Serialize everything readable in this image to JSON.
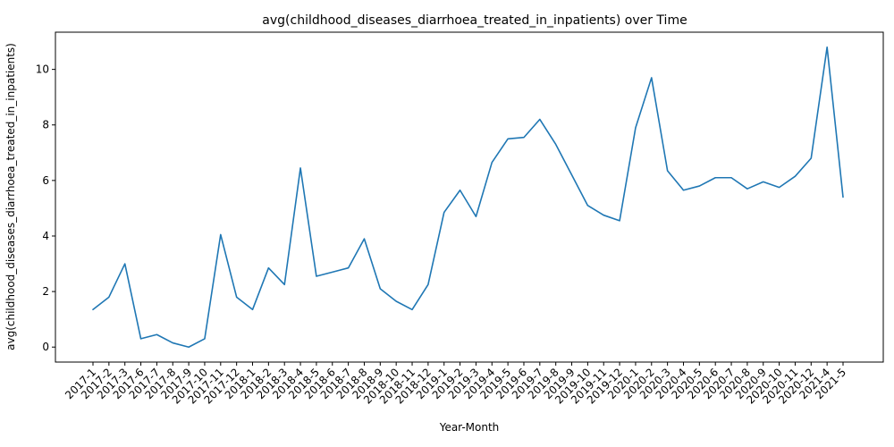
{
  "chart_data": {
    "type": "line",
    "title": "avg(childhood_diseases_diarrhoea_treated_in_inpatients) over Time",
    "xlabel": "Year-Month",
    "ylabel": "avg(childhood_diseases_diarrhoea_treated_in_inpatients)",
    "ylim": [
      -0.54,
      11.34
    ],
    "yticks": [
      0,
      2,
      4,
      6,
      8,
      10
    ],
    "grid": false,
    "line_color": "#1f77b4",
    "categories": [
      "2017-1",
      "2017-2",
      "2017-3",
      "2017-6",
      "2017-7",
      "2017-8",
      "2017-9",
      "2017-10",
      "2017-11",
      "2017-12",
      "2018-1",
      "2018-2",
      "2018-3",
      "2018-4",
      "2018-5",
      "2018-6",
      "2018-7",
      "2018-8",
      "2018-9",
      "2018-10",
      "2018-11",
      "2018-12",
      "2019-1",
      "2019-2",
      "2019-3",
      "2019-4",
      "2019-5",
      "2019-6",
      "2019-7",
      "2019-8",
      "2019-9",
      "2019-10",
      "2019-11",
      "2019-12",
      "2020-1",
      "2020-2",
      "2020-3",
      "2020-4",
      "2020-5",
      "2020-6",
      "2020-7",
      "2020-8",
      "2020-9",
      "2020-10",
      "2020-11",
      "2020-12",
      "2021-4",
      "2021-5"
    ],
    "values": [
      1.35,
      1.8,
      3.0,
      0.3,
      0.45,
      0.15,
      0.0,
      0.3,
      4.05,
      1.8,
      1.35,
      2.85,
      2.25,
      6.45,
      2.55,
      2.7,
      2.85,
      3.9,
      2.1,
      1.65,
      1.35,
      2.25,
      4.85,
      5.65,
      4.7,
      6.65,
      7.5,
      7.55,
      8.2,
      7.3,
      6.2,
      5.1,
      4.75,
      4.55,
      7.9,
      9.7,
      6.35,
      5.65,
      5.8,
      6.1,
      6.1,
      5.7,
      5.95,
      5.75,
      6.15,
      6.8,
      10.8,
      5.4
    ]
  }
}
